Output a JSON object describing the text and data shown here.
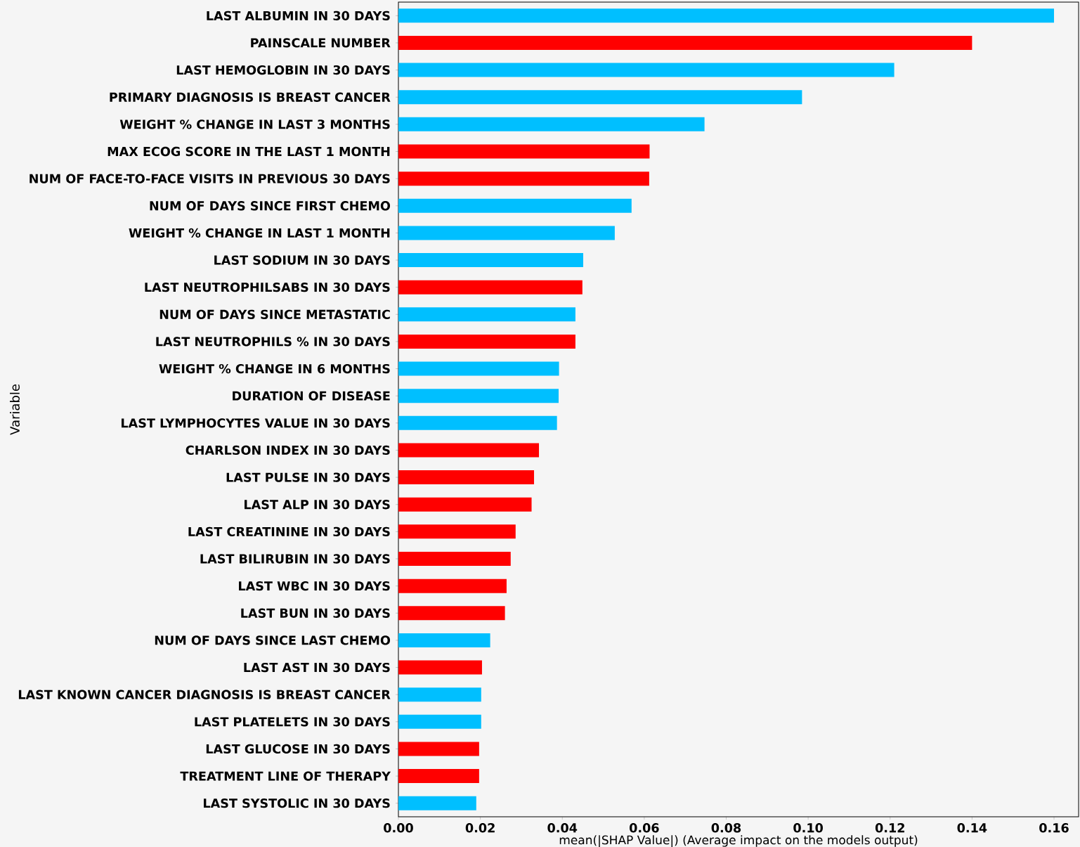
{
  "chart_data": {
    "type": "bar",
    "orientation": "horizontal",
    "xlabel": "mean(|SHAP Value|) (Average impact on the models output)",
    "ylabel": "Variable",
    "categories": [
      "LAST ALBUMIN IN 30 DAYS",
      "PAINSCALE NUMBER",
      "LAST HEMOGLOBIN IN 30 DAYS",
      "PRIMARY DIAGNOSIS IS BREAST CANCER",
      "WEIGHT % CHANGE IN LAST 3 MONTHS",
      "MAX ECOG SCORE IN THE LAST 1 MONTH",
      "NUM OF FACE-TO-FACE VISITS IN PREVIOUS 30 DAYS",
      "NUM OF DAYS SINCE FIRST CHEMO",
      "WEIGHT % CHANGE IN LAST 1 MONTH",
      "LAST SODIUM IN 30 DAYS",
      "LAST NEUTROPHILSABS IN 30 DAYS",
      "NUM OF DAYS SINCE METASTATIC",
      "LAST NEUTROPHILS % IN 30 DAYS",
      "WEIGHT % CHANGE IN 6 MONTHS",
      "DURATION OF DISEASE",
      "LAST LYMPHOCYTES VALUE IN 30 DAYS",
      "CHARLSON INDEX IN 30 DAYS",
      "LAST PULSE IN 30 DAYS",
      "LAST ALP IN 30 DAYS",
      "LAST CREATININE IN 30 DAYS",
      "LAST BILIRUBIN IN 30 DAYS",
      "LAST WBC IN 30 DAYS",
      "LAST BUN IN 30 DAYS",
      "NUM OF DAYS SINCE LAST CHEMO",
      "LAST AST IN 30 DAYS",
      "LAST KNOWN CANCER DIAGNOSIS IS BREAST CANCER",
      "LAST PLATELETS IN 30 DAYS",
      "LAST GLUCOSE IN 30 DAYS",
      "TREATMENT LINE OF THERAPY",
      "LAST SYSTOLIC IN 30 DAYS"
    ],
    "values": [
      0.16,
      0.14,
      0.121,
      0.0985,
      0.0747,
      0.0613,
      0.0612,
      0.0569,
      0.0528,
      0.0451,
      0.0449,
      0.0432,
      0.0432,
      0.0392,
      0.0391,
      0.0387,
      0.0343,
      0.0331,
      0.0325,
      0.0286,
      0.0274,
      0.0264,
      0.026,
      0.0224,
      0.0204,
      0.0202,
      0.0202,
      0.0197,
      0.0197,
      0.019
    ],
    "colors": [
      "#00bfff",
      "#ff0000",
      "#00bfff",
      "#00bfff",
      "#00bfff",
      "#ff0000",
      "#ff0000",
      "#00bfff",
      "#00bfff",
      "#00bfff",
      "#ff0000",
      "#00bfff",
      "#ff0000",
      "#00bfff",
      "#00bfff",
      "#00bfff",
      "#ff0000",
      "#ff0000",
      "#ff0000",
      "#ff0000",
      "#ff0000",
      "#ff0000",
      "#ff0000",
      "#00bfff",
      "#ff0000",
      "#00bfff",
      "#00bfff",
      "#ff0000",
      "#ff0000",
      "#00bfff"
    ],
    "xlim": [
      0,
      0.166
    ],
    "xticks": [
      {
        "value": 0,
        "label": "0.00"
      },
      {
        "value": 0.02,
        "label": "0.02"
      },
      {
        "value": 0.04,
        "label": "0.04"
      },
      {
        "value": 0.06,
        "label": "0.06"
      },
      {
        "value": 0.08,
        "label": "0.08"
      },
      {
        "value": 0.1,
        "label": "0.10"
      },
      {
        "value": 0.12,
        "label": "0.12"
      },
      {
        "value": 0.14,
        "label": "0.14"
      },
      {
        "value": 0.16,
        "label": "0.16"
      }
    ]
  }
}
